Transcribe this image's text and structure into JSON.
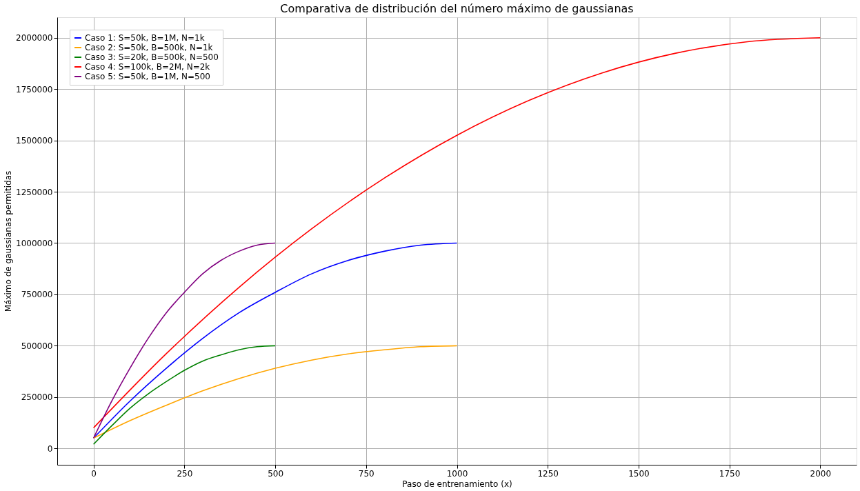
{
  "chart_data": {
    "type": "line",
    "title": "Comparativa de distribución del número máximo de gaussianas",
    "xlabel": "Paso de entrenamiento (x)",
    "ylabel": "Máximo de gaussianas permitidas",
    "xlim": [
      -100,
      2100
    ],
    "xticks": [
      0,
      250,
      500,
      750,
      1000,
      1250,
      1500,
      1750,
      2000
    ],
    "ylim": [
      -80000,
      2100000
    ],
    "yticks": [
      0,
      250000,
      500000,
      750000,
      1000000,
      1250000,
      1500000,
      1750000,
      2000000
    ],
    "grid": true,
    "legend": "top left",
    "marker": "none",
    "line_style": "solid",
    "series": [
      {
        "name": "Caso 1: S=50k, B=1M, N=1k",
        "color": "#0000ff",
        "x": [
          0,
          100,
          200,
          300,
          400,
          500,
          600,
          700,
          800,
          900,
          1000
        ],
        "values": [
          50000,
          230000,
          390000,
          535000,
          660000,
          760000,
          850000,
          915000,
          960000,
          990000,
          1000000
        ]
      },
      {
        "name": "Caso 2: S=50k, B=500k, N=1k",
        "color": "#ffa500",
        "x": [
          0,
          100,
          200,
          300,
          400,
          500,
          600,
          700,
          800,
          900,
          1000
        ],
        "values": [
          50000,
          135000,
          210000,
          280000,
          340000,
          390000,
          430000,
          460000,
          480000,
          495000,
          500000
        ]
      },
      {
        "name": "Caso 3: S=20k, B=500k, N=500",
        "color": "#008000",
        "x": [
          0,
          50,
          100,
          150,
          200,
          250,
          300,
          350,
          400,
          450,
          500
        ],
        "values": [
          20000,
          110000,
          195000,
          265000,
          325000,
          380000,
          425000,
          455000,
          480000,
          495000,
          500000
        ]
      },
      {
        "name": "Caso 4: S=100k, B=2M, N=2k",
        "color": "#ff0000",
        "x": [
          0,
          200,
          400,
          600,
          800,
          1000,
          1200,
          1400,
          1600,
          1800,
          2000
        ],
        "values": [
          100000,
          461000,
          784000,
          1069000,
          1316000,
          1525000,
          1696000,
          1829000,
          1924000,
          1981000,
          2000000
        ]
      },
      {
        "name": "Caso 5: S=50k, B=1M, N=500",
        "color": "#800080",
        "x": [
          0,
          50,
          100,
          150,
          200,
          250,
          300,
          350,
          400,
          450,
          500
        ],
        "values": [
          50000,
          230000,
          390000,
          535000,
          660000,
          760000,
          850000,
          915000,
          960000,
          990000,
          1000000
        ]
      }
    ]
  }
}
